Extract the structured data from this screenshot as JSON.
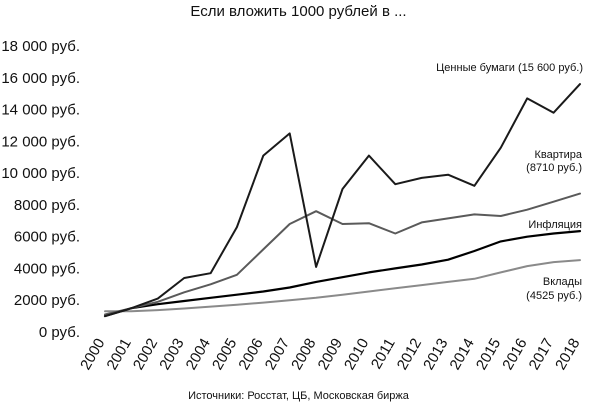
{
  "chart_data": {
    "type": "line",
    "title": "Если вложить 1000 рублей в ...",
    "source": "Источники: Росстат, ЦБ, Московская биржа",
    "xlabel": "",
    "ylabel": "",
    "x": [
      "2000",
      "2001",
      "2002",
      "2003",
      "2004",
      "2005",
      "2006",
      "2007",
      "2008",
      "2009",
      "2010",
      "2011",
      "2012",
      "2013",
      "2014",
      "2015",
      "2016",
      "2017",
      "2018"
    ],
    "ylim": [
      0,
      18000
    ],
    "yticks": [
      0,
      2000,
      4000,
      6000,
      8000,
      10000,
      12000,
      14000,
      16000,
      18000
    ],
    "ytick_labels": [
      "0 руб.",
      "2000 руб.",
      "4000 руб.",
      "6000 руб.",
      "8000 руб.",
      "10 000 руб.",
      "12 000 руб.",
      "14 000 руб.",
      "16 000 руб.",
      "18 000 руб."
    ],
    "grid": false,
    "series": [
      {
        "id": "securities",
        "values": [
          1000,
          1500,
          2100,
          3400,
          3700,
          6600,
          11100,
          12500,
          4100,
          9000,
          11100,
          9300,
          9700,
          9900,
          9200,
          11600,
          14700,
          13800,
          15600
        ],
        "color": "#1a1a1a",
        "labels": [
          "Ценные бумаги (15 600 руб.)"
        ]
      },
      {
        "id": "apartment",
        "values": [
          1100,
          1500,
          1900,
          2500,
          3000,
          3600,
          5200,
          6800,
          7600,
          6800,
          6850,
          6200,
          6900,
          7150,
          7400,
          7300,
          7700,
          8200,
          8710
        ],
        "color": "#5a5a5a",
        "labels": [
          "Квартира",
          "(8710 руб.)"
        ]
      },
      {
        "id": "inflation",
        "values": [
          1000,
          1500,
          1750,
          1950,
          2150,
          2350,
          2550,
          2800,
          3150,
          3450,
          3750,
          4000,
          4250,
          4550,
          5100,
          5700,
          6000,
          6200,
          6350
        ],
        "color": "#000000",
        "labels": [
          "Инфляция"
        ]
      },
      {
        "id": "deposits",
        "values": [
          1300,
          1300,
          1380,
          1480,
          1600,
          1720,
          1850,
          2000,
          2150,
          2350,
          2550,
          2750,
          2950,
          3150,
          3350,
          3750,
          4150,
          4400,
          4525
        ],
        "color": "#8a8a8a",
        "labels": [
          "Вклады",
          "(4525 руб.)"
        ]
      }
    ]
  }
}
